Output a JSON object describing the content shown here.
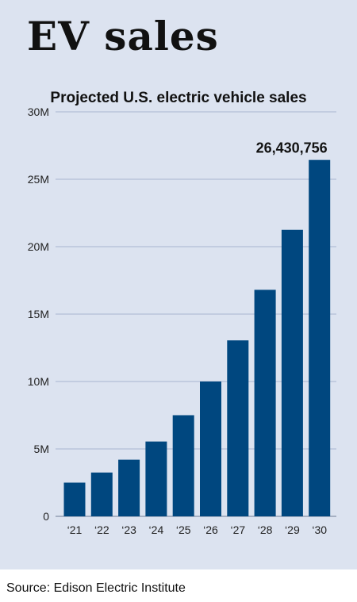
{
  "headline": "EV sales",
  "source": "Source: Edison Electric Institute",
  "colors": {
    "panel": "#dce3f0",
    "bar": "#00477f",
    "grid": "#a9b6cf"
  },
  "chart_data": {
    "type": "bar",
    "title": "Projected U.S. electric vehicle sales",
    "xlabel": "",
    "ylabel": "",
    "categories": [
      "‘21",
      "‘22",
      "‘23",
      "‘24",
      "‘25",
      "‘26",
      "‘27",
      "‘28",
      "‘29",
      "‘30"
    ],
    "values": [
      2500000,
      3250000,
      4200000,
      5550000,
      7500000,
      10000000,
      13050000,
      16800000,
      21250000,
      26430756
    ],
    "ylim": [
      0,
      30000000
    ],
    "yticks": [
      {
        "value": 0,
        "label": "0"
      },
      {
        "value": 5000000,
        "label": "5M"
      },
      {
        "value": 10000000,
        "label": "10M"
      },
      {
        "value": 15000000,
        "label": "15M"
      },
      {
        "value": 20000000,
        "label": "20M"
      },
      {
        "value": 25000000,
        "label": "25M"
      },
      {
        "value": 30000000,
        "label": "30M"
      }
    ],
    "data_labels": [
      {
        "index": 9,
        "text": "26,430,756"
      }
    ],
    "grid": true,
    "legend": "none"
  }
}
